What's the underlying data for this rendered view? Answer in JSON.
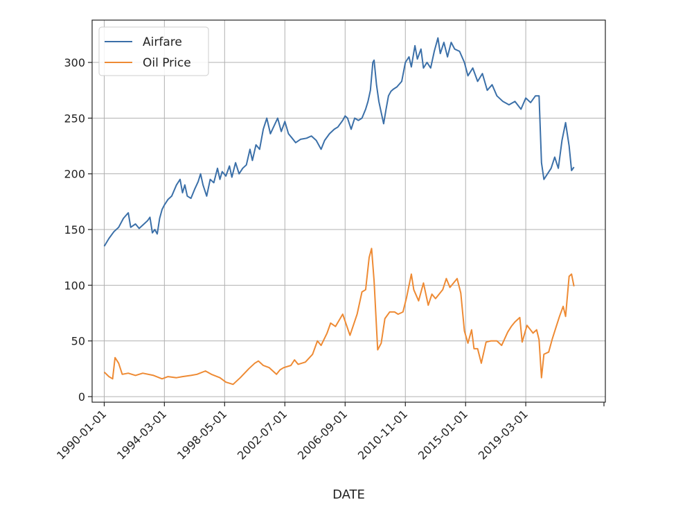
{
  "chart_data": {
    "type": "line",
    "title": "",
    "xlabel": "DATE",
    "ylabel": "",
    "xlim": [
      "1989-03-01",
      "2024-09-01"
    ],
    "ylim": [
      -5,
      338
    ],
    "x_ticks": [
      "1990-01-01",
      "1994-03-01",
      "1998-05-01",
      "2002-07-01",
      "2006-09-01",
      "2010-11-01",
      "2015-01-01",
      "2019-03-01"
    ],
    "y_ticks": [
      0,
      50,
      100,
      150,
      200,
      250,
      300
    ],
    "grid": true,
    "legend_position": "top-left",
    "series": [
      {
        "name": "Airfare",
        "color": "#3a6fa8",
        "points": [
          [
            "1990-01-01",
            135
          ],
          [
            "1990-05-01",
            142
          ],
          [
            "1990-09-01",
            148
          ],
          [
            "1991-01-01",
            152
          ],
          [
            "1991-05-01",
            160
          ],
          [
            "1991-09-01",
            165
          ],
          [
            "1991-11-01",
            152
          ],
          [
            "1992-03-01",
            155
          ],
          [
            "1992-06-01",
            151
          ],
          [
            "1992-10-01",
            155
          ],
          [
            "1993-01-01",
            158
          ],
          [
            "1993-03-01",
            161
          ],
          [
            "1993-05-01",
            147
          ],
          [
            "1993-07-01",
            150
          ],
          [
            "1993-09-01",
            146
          ],
          [
            "1993-11-01",
            160
          ],
          [
            "1994-01-01",
            168
          ],
          [
            "1994-03-01",
            172
          ],
          [
            "1994-06-01",
            177
          ],
          [
            "1994-09-01",
            180
          ],
          [
            "1995-01-01",
            190
          ],
          [
            "1995-04-01",
            195
          ],
          [
            "1995-06-01",
            183
          ],
          [
            "1995-08-01",
            190
          ],
          [
            "1995-10-01",
            180
          ],
          [
            "1996-01-01",
            178
          ],
          [
            "1996-04-01",
            186
          ],
          [
            "1996-07-01",
            193
          ],
          [
            "1996-09-01",
            200
          ],
          [
            "1996-11-01",
            190
          ],
          [
            "1997-02-01",
            180
          ],
          [
            "1997-05-01",
            195
          ],
          [
            "1997-08-01",
            192
          ],
          [
            "1997-11-01",
            205
          ],
          [
            "1998-01-01",
            195
          ],
          [
            "1998-03-01",
            202
          ],
          [
            "1998-06-01",
            198
          ],
          [
            "1998-09-01",
            207
          ],
          [
            "1998-11-01",
            197
          ],
          [
            "1999-02-01",
            210
          ],
          [
            "1999-05-01",
            200
          ],
          [
            "1999-08-01",
            205
          ],
          [
            "1999-11-01",
            208
          ],
          [
            "2000-02-01",
            222
          ],
          [
            "2000-04-01",
            212
          ],
          [
            "2000-07-01",
            226
          ],
          [
            "2000-10-01",
            222
          ],
          [
            "2001-01-01",
            240
          ],
          [
            "2001-04-01",
            250
          ],
          [
            "2001-07-01",
            236
          ],
          [
            "2001-10-01",
            243
          ],
          [
            "2002-01-01",
            250
          ],
          [
            "2002-04-01",
            238
          ],
          [
            "2002-07-01",
            247
          ],
          [
            "2002-10-01",
            236
          ],
          [
            "2003-01-01",
            232
          ],
          [
            "2003-04-01",
            228
          ],
          [
            "2003-08-01",
            231
          ],
          [
            "2004-01-01",
            232
          ],
          [
            "2004-05-01",
            234
          ],
          [
            "2004-09-01",
            230
          ],
          [
            "2005-01-01",
            222
          ],
          [
            "2005-04-01",
            230
          ],
          [
            "2005-08-01",
            236
          ],
          [
            "2005-12-01",
            240
          ],
          [
            "2006-03-01",
            242
          ],
          [
            "2006-07-01",
            248
          ],
          [
            "2006-09-01",
            252
          ],
          [
            "2006-11-01",
            250
          ],
          [
            "2007-02-01",
            240
          ],
          [
            "2007-05-01",
            250
          ],
          [
            "2007-08-01",
            248
          ],
          [
            "2007-11-01",
            250
          ],
          [
            "2008-02-01",
            258
          ],
          [
            "2008-04-01",
            265
          ],
          [
            "2008-06-01",
            275
          ],
          [
            "2008-08-01",
            300
          ],
          [
            "2008-09-01",
            302
          ],
          [
            "2008-11-01",
            280
          ],
          [
            "2009-01-01",
            265
          ],
          [
            "2009-03-01",
            255
          ],
          [
            "2009-05-01",
            245
          ],
          [
            "2009-07-01",
            258
          ],
          [
            "2009-09-01",
            270
          ],
          [
            "2009-11-01",
            274
          ],
          [
            "2010-01-01",
            276
          ],
          [
            "2010-04-01",
            278
          ],
          [
            "2010-08-01",
            283
          ],
          [
            "2010-11-01",
            300
          ],
          [
            "2011-02-01",
            305
          ],
          [
            "2011-04-01",
            296
          ],
          [
            "2011-07-01",
            315
          ],
          [
            "2011-09-01",
            303
          ],
          [
            "2011-12-01",
            312
          ],
          [
            "2012-02-01",
            295
          ],
          [
            "2012-05-01",
            300
          ],
          [
            "2012-08-01",
            295
          ],
          [
            "2012-11-01",
            310
          ],
          [
            "2013-02-01",
            322
          ],
          [
            "2013-04-01",
            308
          ],
          [
            "2013-07-01",
            318
          ],
          [
            "2013-10-01",
            305
          ],
          [
            "2014-01-01",
            318
          ],
          [
            "2014-04-01",
            312
          ],
          [
            "2014-08-01",
            310
          ],
          [
            "2014-12-01",
            300
          ],
          [
            "2015-03-01",
            288
          ],
          [
            "2015-07-01",
            295
          ],
          [
            "2015-11-01",
            283
          ],
          [
            "2016-03-01",
            290
          ],
          [
            "2016-07-01",
            275
          ],
          [
            "2016-11-01",
            280
          ],
          [
            "2017-03-01",
            270
          ],
          [
            "2017-08-01",
            265
          ],
          [
            "2018-01-01",
            262
          ],
          [
            "2018-06-01",
            265
          ],
          [
            "2018-11-01",
            258
          ],
          [
            "2019-03-01",
            268
          ],
          [
            "2019-07-01",
            264
          ],
          [
            "2019-11-01",
            270
          ],
          [
            "2020-02-01",
            270
          ],
          [
            "2020-04-01",
            210
          ],
          [
            "2020-06-01",
            195
          ],
          [
            "2020-09-01",
            200
          ],
          [
            "2020-12-01",
            205
          ],
          [
            "2021-03-01",
            215
          ],
          [
            "2021-06-01",
            205
          ],
          [
            "2021-09-01",
            230
          ],
          [
            "2021-12-01",
            246
          ],
          [
            "2022-03-01",
            225
          ],
          [
            "2022-05-01",
            203
          ],
          [
            "2022-07-01",
            206
          ]
        ]
      },
      {
        "name": "Oil Price",
        "color": "#ee8a33",
        "points": [
          [
            "1990-01-01",
            22
          ],
          [
            "1990-05-01",
            18
          ],
          [
            "1990-08-01",
            16
          ],
          [
            "1990-10-01",
            35
          ],
          [
            "1991-01-01",
            30
          ],
          [
            "1991-04-01",
            20
          ],
          [
            "1991-09-01",
            21
          ],
          [
            "1992-03-01",
            19
          ],
          [
            "1992-09-01",
            21
          ],
          [
            "1993-06-01",
            19
          ],
          [
            "1994-01-01",
            16
          ],
          [
            "1994-06-01",
            18
          ],
          [
            "1995-01-01",
            17
          ],
          [
            "1995-06-01",
            18
          ],
          [
            "1996-01-01",
            19
          ],
          [
            "1996-06-01",
            20
          ],
          [
            "1997-01-01",
            23
          ],
          [
            "1997-06-01",
            20
          ],
          [
            "1998-01-01",
            17
          ],
          [
            "1998-06-01",
            13
          ],
          [
            "1998-12-01",
            11
          ],
          [
            "1999-06-01",
            17
          ],
          [
            "2000-01-01",
            25
          ],
          [
            "2000-06-01",
            30
          ],
          [
            "2000-09-01",
            32
          ],
          [
            "2001-01-01",
            28
          ],
          [
            "2001-06-01",
            26
          ],
          [
            "2001-12-01",
            20
          ],
          [
            "2002-03-01",
            24
          ],
          [
            "2002-06-01",
            26
          ],
          [
            "2002-12-01",
            28
          ],
          [
            "2003-03-01",
            33
          ],
          [
            "2003-06-01",
            29
          ],
          [
            "2003-12-01",
            31
          ],
          [
            "2004-06-01",
            38
          ],
          [
            "2004-10-01",
            50
          ],
          [
            "2005-01-01",
            46
          ],
          [
            "2005-06-01",
            57
          ],
          [
            "2005-09-01",
            66
          ],
          [
            "2006-01-01",
            63
          ],
          [
            "2006-07-01",
            74
          ],
          [
            "2007-01-01",
            55
          ],
          [
            "2007-07-01",
            74
          ],
          [
            "2007-11-01",
            94
          ],
          [
            "2008-02-01",
            96
          ],
          [
            "2008-05-01",
            125
          ],
          [
            "2008-07-01",
            133
          ],
          [
            "2008-09-01",
            104
          ],
          [
            "2008-12-01",
            42
          ],
          [
            "2009-03-01",
            48
          ],
          [
            "2009-06-01",
            70
          ],
          [
            "2009-10-01",
            76
          ],
          [
            "2010-02-01",
            76
          ],
          [
            "2010-05-01",
            74
          ],
          [
            "2010-09-01",
            76
          ],
          [
            "2010-12-01",
            89
          ],
          [
            "2011-04-01",
            110
          ],
          [
            "2011-06-01",
            96
          ],
          [
            "2011-10-01",
            86
          ],
          [
            "2012-02-01",
            102
          ],
          [
            "2012-06-01",
            82
          ],
          [
            "2012-09-01",
            92
          ],
          [
            "2012-12-01",
            88
          ],
          [
            "2013-06-01",
            96
          ],
          [
            "2013-09-01",
            106
          ],
          [
            "2013-12-01",
            98
          ],
          [
            "2014-06-01",
            106
          ],
          [
            "2014-09-01",
            93
          ],
          [
            "2014-12-01",
            59
          ],
          [
            "2015-03-01",
            48
          ],
          [
            "2015-06-01",
            60
          ],
          [
            "2015-08-01",
            43
          ],
          [
            "2015-11-01",
            43
          ],
          [
            "2016-02-01",
            30
          ],
          [
            "2016-06-01",
            49
          ],
          [
            "2016-10-01",
            50
          ],
          [
            "2017-03-01",
            50
          ],
          [
            "2017-07-01",
            46
          ],
          [
            "2017-12-01",
            58
          ],
          [
            "2018-03-01",
            63
          ],
          [
            "2018-06-01",
            67
          ],
          [
            "2018-10-01",
            71
          ],
          [
            "2018-12-01",
            49
          ],
          [
            "2019-04-01",
            64
          ],
          [
            "2019-09-01",
            57
          ],
          [
            "2019-12-01",
            60
          ],
          [
            "2020-02-01",
            51
          ],
          [
            "2020-04-01",
            17
          ],
          [
            "2020-06-01",
            38
          ],
          [
            "2020-10-01",
            40
          ],
          [
            "2021-01-01",
            52
          ],
          [
            "2021-04-01",
            62
          ],
          [
            "2021-07-01",
            72
          ],
          [
            "2021-10-01",
            81
          ],
          [
            "2021-12-01",
            72
          ],
          [
            "2022-03-01",
            108
          ],
          [
            "2022-05-01",
            110
          ],
          [
            "2022-07-01",
            99
          ]
        ]
      }
    ]
  }
}
